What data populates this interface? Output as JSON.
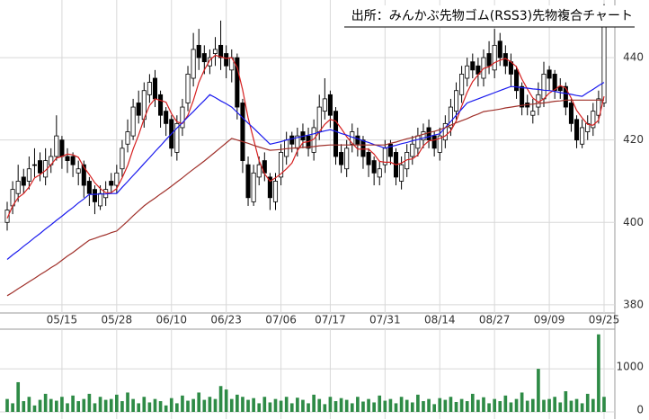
{
  "chart_data": [
    {
      "type": "candlestick",
      "title": "出所：みんかぶ先物ゴム(RSS3)先物複合チャート",
      "categories": [
        null,
        null,
        null,
        null,
        null,
        null,
        null,
        null,
        null,
        null,
        "05/15",
        null,
        null,
        null,
        null,
        null,
        null,
        null,
        null,
        null,
        "05/28",
        null,
        null,
        null,
        null,
        null,
        null,
        null,
        null,
        null,
        "06/10",
        null,
        null,
        null,
        null,
        null,
        null,
        null,
        null,
        null,
        "06/23",
        null,
        null,
        null,
        null,
        null,
        null,
        null,
        null,
        null,
        "07/06",
        null,
        null,
        null,
        null,
        null,
        null,
        null,
        null,
        "07/17",
        null,
        null,
        null,
        null,
        null,
        null,
        null,
        null,
        null,
        "07/31",
        null,
        null,
        null,
        null,
        null,
        null,
        null,
        null,
        null,
        "08/14",
        null,
        null,
        null,
        null,
        null,
        null,
        null,
        null,
        null,
        "08/27",
        null,
        null,
        null,
        null,
        null,
        null,
        null,
        null,
        null,
        "09/09",
        null,
        null,
        null,
        null,
        null,
        null,
        null,
        null,
        null,
        "09/25"
      ],
      "open": [
        400,
        404,
        407,
        411,
        410,
        414,
        415,
        411,
        414,
        416,
        420,
        416,
        416,
        412,
        414,
        410,
        408,
        404,
        406,
        410,
        409,
        413,
        419,
        421,
        429,
        425,
        431,
        435,
        431,
        427,
        425,
        417,
        423,
        429,
        435,
        443,
        441,
        438,
        441,
        443,
        441,
        437,
        440,
        429,
        414,
        405,
        411,
        415,
        411,
        405,
        411,
        416,
        421,
        418,
        422,
        421,
        417,
        422,
        427,
        431,
        427,
        417,
        413,
        419,
        421,
        420,
        417,
        415,
        411,
        414,
        419,
        417,
        410,
        413,
        416,
        418,
        420,
        423,
        421,
        417,
        420,
        423,
        427,
        431,
        435,
        439,
        438,
        435,
        441,
        437,
        444,
        441,
        439,
        437,
        433,
        429,
        426,
        428,
        430,
        437,
        436,
        433,
        433,
        429,
        425,
        419,
        422,
        423,
        426,
        429
      ],
      "high": [
        405,
        410,
        414,
        413,
        416,
        418,
        417,
        418,
        418,
        426,
        421,
        418,
        417,
        415,
        415,
        411,
        409,
        409,
        410,
        412,
        414,
        420,
        425,
        430,
        432,
        434,
        436,
        437,
        432,
        428,
        426,
        426,
        430,
        438,
        446,
        447,
        443,
        442,
        445,
        449,
        443,
        442,
        441,
        430,
        416,
        414,
        416,
        417,
        412,
        412,
        419,
        422,
        422,
        423,
        424,
        423,
        425,
        431,
        435,
        432,
        428,
        419,
        420,
        424,
        423,
        421,
        418,
        416,
        415,
        420,
        420,
        418,
        416,
        419,
        421,
        423,
        424,
        425,
        422,
        423,
        426,
        430,
        434,
        438,
        440,
        441,
        440,
        442,
        444,
        447,
        446,
        443,
        441,
        438,
        434,
        431,
        430,
        434,
        439,
        438,
        437,
        435,
        434,
        430,
        426,
        425,
        426,
        429,
        432,
        453
      ],
      "low": [
        398,
        402,
        405,
        407,
        408,
        411,
        410,
        409,
        412,
        415,
        413,
        412,
        411,
        409,
        406,
        404,
        402,
        403,
        404,
        407,
        407,
        411,
        417,
        420,
        424,
        423,
        429,
        428,
        423,
        421,
        416,
        415,
        421,
        427,
        433,
        437,
        436,
        436,
        438,
        437,
        435,
        434,
        425,
        412,
        404,
        404,
        409,
        410,
        403,
        403,
        409,
        414,
        417,
        416,
        418,
        416,
        415,
        420,
        425,
        423,
        414,
        412,
        411,
        417,
        416,
        413,
        411,
        409,
        409,
        412,
        414,
        409,
        408,
        411,
        414,
        416,
        418,
        418,
        416,
        415,
        418,
        421,
        425,
        429,
        433,
        435,
        433,
        433,
        436,
        435,
        438,
        436,
        433,
        430,
        426,
        426,
        424,
        426,
        428,
        432,
        430,
        430,
        426,
        422,
        418,
        418,
        420,
        421,
        424,
        428
      ],
      "close": [
        403,
        408,
        410,
        409,
        413,
        414,
        412,
        415,
        416,
        421,
        416,
        415,
        414,
        413,
        409,
        407,
        405,
        407,
        408,
        409,
        412,
        418,
        422,
        428,
        426,
        432,
        434,
        430,
        426,
        424,
        418,
        424,
        428,
        436,
        442,
        440,
        439,
        440,
        442,
        440,
        438,
        440,
        428,
        415,
        406,
        412,
        414,
        412,
        406,
        410,
        417,
        420,
        419,
        421,
        420,
        418,
        423,
        428,
        430,
        426,
        416,
        414,
        418,
        422,
        419,
        416,
        414,
        412,
        413,
        418,
        416,
        411,
        414,
        417,
        419,
        421,
        422,
        420,
        418,
        421,
        424,
        428,
        432,
        436,
        438,
        437,
        436,
        440,
        438,
        443,
        440,
        438,
        436,
        432,
        428,
        428,
        427,
        431,
        436,
        435,
        432,
        432,
        428,
        424,
        420,
        423,
        424,
        427,
        430,
        449
      ],
      "series": [
        {
          "color": "#d62020",
          "values": [
            401,
            404,
            406,
            407,
            408.6,
            410.8,
            411.6,
            412.6,
            414,
            415.6,
            416,
            416.6,
            416.4,
            415.8,
            413.4,
            411.6,
            409.6,
            408.2,
            407.2,
            407.2,
            408.2,
            410.8,
            413.8,
            417.8,
            421.2,
            425.2,
            428.4,
            430,
            429.6,
            429.2,
            426.4,
            424.4,
            424,
            426,
            429.6,
            434,
            437,
            439.4,
            440.6,
            440.2,
            439.8,
            440,
            437.6,
            432.2,
            425.4,
            420.2,
            415,
            411.8,
            410,
            410.8,
            411.8,
            413,
            414.4,
            417.4,
            419.4,
            419.6,
            420.2,
            422,
            423.8,
            425,
            424.6,
            422.8,
            420.8,
            419.2,
            417.8,
            417.8,
            417.8,
            416.6,
            414.8,
            414.6,
            414.6,
            414,
            414.4,
            415.2,
            415.4,
            416.4,
            418.6,
            419.8,
            420,
            420.4,
            421,
            422.2,
            424.6,
            428.2,
            431.6,
            434.2,
            435.8,
            437.4,
            437.8,
            438.8,
            439.4,
            439.8,
            439,
            437.8,
            434.8,
            432.4,
            430.2,
            429.2,
            430,
            431.4,
            432.2,
            433.2,
            432.6,
            430.2,
            427.2,
            425.4,
            423.8,
            423.6,
            424.8,
            430.6
          ]
        },
        {
          "color": "#1a1aee",
          "values": [
            391,
            392.1,
            393.1,
            394.2,
            395.2,
            396.3,
            397.3,
            398.4,
            399.4,
            400.5,
            401.5,
            402.6,
            403.6,
            404.7,
            405.7,
            406.8,
            406.8,
            406.9,
            406.9,
            407,
            407,
            408.5,
            409.9,
            411.4,
            412.8,
            414.3,
            415.7,
            417.2,
            418.6,
            420.1,
            421.5,
            422.9,
            424.2,
            425.6,
            426.9,
            428.3,
            429.6,
            431,
            430.3,
            429.5,
            428.8,
            428,
            426.7,
            425.4,
            424.1,
            422.9,
            421.6,
            420.3,
            419,
            419.3,
            419.6,
            420,
            420.3,
            420.6,
            420.9,
            421.2,
            421.5,
            421.9,
            422.2,
            422.5,
            422.1,
            421.6,
            421.2,
            420.7,
            420.3,
            419.8,
            419.4,
            418.9,
            418.5,
            418,
            418.4,
            418.7,
            419.1,
            419.4,
            419.8,
            420.1,
            420.5,
            420.8,
            421.2,
            421.5,
            423,
            424.5,
            426,
            427.5,
            429,
            429.5,
            430,
            430.5,
            431,
            431.5,
            432,
            432.5,
            433,
            432.9,
            432.7,
            432.6,
            432.4,
            432.3,
            432.1,
            432,
            431.8,
            431.5,
            431.3,
            431.1,
            430.8,
            430.6,
            431.5,
            432.3,
            433.2,
            434
          ]
        },
        {
          "color": "#a0302a",
          "values": [
            382.2,
            383,
            383.9,
            384.7,
            385.6,
            386.4,
            387.3,
            388.1,
            389,
            389.8,
            390.8,
            391.8,
            392.7,
            393.7,
            394.7,
            395.7,
            396.1,
            396.6,
            397,
            397.5,
            397.9,
            399.1,
            400.3,
            401.6,
            402.8,
            404,
            405,
            405.9,
            406.9,
            407.8,
            408.8,
            409.8,
            410.8,
            411.9,
            412.9,
            413.9,
            414.9,
            416,
            417.1,
            418.2,
            419.3,
            420.4,
            420,
            419.6,
            419.2,
            418.7,
            418.3,
            417.9,
            417.5,
            417.6,
            417.7,
            417.9,
            418,
            418.1,
            418.2,
            418.3,
            418.4,
            418.6,
            418.7,
            418.8,
            418.8,
            418.8,
            418.8,
            418.8,
            418.8,
            418.8,
            418.8,
            418.8,
            418.8,
            418.8,
            419.2,
            419.5,
            419.9,
            420.3,
            420.6,
            421,
            421.4,
            421.8,
            422.1,
            422.5,
            423,
            423.6,
            424.2,
            424.7,
            425.2,
            425.8,
            426.3,
            426.9,
            427.1,
            427.3,
            427.5,
            427.8,
            428,
            428.2,
            428.4,
            428.6,
            428.7,
            428.9,
            429,
            429.2,
            429.4,
            429.5,
            429.7,
            429.7,
            429.7,
            429.7,
            429.7,
            429.7,
            429.7,
            429.7
          ]
        }
      ],
      "ylim": [
        378,
        454
      ],
      "yticks": [
        380,
        400,
        420,
        440
      ],
      "grid": true
    },
    {
      "type": "bar",
      "color": "#2e8b46",
      "values": [
        300,
        200,
        690,
        250,
        350,
        150,
        280,
        420,
        300,
        260,
        350,
        200,
        380,
        250,
        300,
        420,
        200,
        350,
        280,
        300,
        400,
        250,
        450,
        300,
        200,
        350,
        220,
        300,
        250,
        150,
        320,
        200,
        380,
        260,
        300,
        450,
        280,
        350,
        300,
        600,
        520,
        300,
        400,
        350,
        280,
        320,
        200,
        350,
        220,
        300,
        260,
        350,
        200,
        330,
        280,
        200,
        400,
        300,
        180,
        350,
        250,
        320,
        280,
        200,
        350,
        240,
        300,
        220,
        380,
        260,
        300,
        200,
        350,
        280,
        220,
        400,
        250,
        300,
        180,
        320,
        280,
        350,
        230,
        300,
        250,
        420,
        280,
        340,
        200,
        300,
        250,
        380,
        220,
        300,
        450,
        260,
        300,
        1000,
        280,
        300,
        350,
        220,
        480,
        260,
        300,
        200,
        420,
        300,
        1800,
        350
      ],
      "ylim": [
        0,
        1900
      ],
      "yticks": [
        0,
        1000
      ],
      "grid": true
    }
  ]
}
